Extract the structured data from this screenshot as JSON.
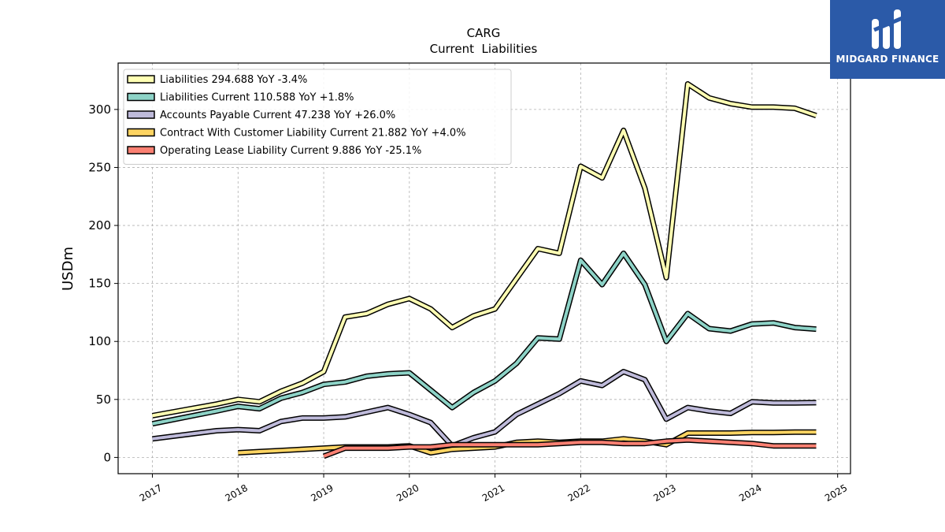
{
  "chart_data": {
    "type": "line",
    "title": "CARG",
    "subtitle": "Current  Liabilities",
    "ylabel": "USDm",
    "ylim": [
      -14,
      340
    ],
    "xlim": [
      2016.6,
      2025.15
    ],
    "yticks": [
      0,
      50,
      100,
      150,
      200,
      250,
      300
    ],
    "xticks": [
      "2017",
      "2018",
      "2019",
      "2020",
      "2021",
      "2022",
      "2023",
      "2024",
      "2025"
    ],
    "grid": true,
    "legend_position": "top-left",
    "series": [
      {
        "name": "Liabilities",
        "legend": "Liabilities  294.688 YoY -3.4%",
        "color": "#ffffb3",
        "x": [
          2017.0,
          2017.75,
          2018.0,
          2018.25,
          2018.5,
          2018.75,
          2019.0,
          2019.25,
          2019.5,
          2019.75,
          2020.0,
          2020.25,
          2020.5,
          2020.75,
          2021.0,
          2021.25,
          2021.5,
          2021.75,
          2022.0,
          2022.25,
          2022.5,
          2022.75,
          2023.0,
          2023.25,
          2023.5,
          2023.75,
          2024.0,
          2024.25,
          2024.5,
          2024.75
        ],
        "y": [
          36,
          46,
          50,
          48,
          57,
          64,
          74,
          121,
          124,
          132,
          137,
          128,
          112,
          122,
          128,
          154,
          180,
          176,
          251,
          241,
          282,
          232,
          155,
          322,
          310,
          305,
          302,
          302,
          301,
          294.688
        ]
      },
      {
        "name": "Liabilities Current",
        "legend": "Liabilities Current  110.588 YoY +1.8%",
        "color": "#8dd3c7",
        "x": [
          2017.0,
          2017.75,
          2018.0,
          2018.25,
          2018.5,
          2018.75,
          2019.0,
          2019.25,
          2019.5,
          2019.75,
          2020.0,
          2020.25,
          2020.5,
          2020.75,
          2021.0,
          2021.25,
          2021.5,
          2021.75,
          2022.0,
          2022.25,
          2022.5,
          2022.75,
          2023.0,
          2023.25,
          2023.5,
          2023.75,
          2024.0,
          2024.25,
          2024.5,
          2024.75
        ],
        "y": [
          29,
          40,
          44,
          42,
          51,
          56,
          63,
          65,
          70,
          72,
          73,
          58,
          43,
          56,
          66,
          81,
          103,
          102,
          170,
          149,
          176,
          149,
          100,
          124,
          111,
          109,
          115,
          116,
          112,
          110.588
        ]
      },
      {
        "name": "Accounts Payable Current",
        "legend": "Accounts Payable Current  47.238 YoY +26.0%",
        "color": "#bebada",
        "x": [
          2017.0,
          2017.75,
          2018.0,
          2018.25,
          2018.5,
          2018.75,
          2019.0,
          2019.25,
          2019.5,
          2019.75,
          2020.0,
          2020.25,
          2020.5,
          2020.75,
          2021.0,
          2021.25,
          2021.5,
          2021.75,
          2022.0,
          2022.25,
          2022.5,
          2022.75,
          2023.0,
          2023.25,
          2023.5,
          2023.75,
          2024.0,
          2024.25,
          2024.5,
          2024.75
        ],
        "y": [
          16,
          23,
          24,
          23,
          31,
          34,
          34,
          35,
          39,
          43,
          37,
          30,
          10,
          17,
          22,
          37,
          46,
          55,
          66,
          62,
          74,
          67,
          33,
          43,
          40,
          38,
          48,
          47,
          47,
          47.238
        ]
      },
      {
        "name": "Contract With Customer Liability Current",
        "legend": "Contract With Customer Liability Current  21.882 YoY +4.0%",
        "color": "#fdd462",
        "x": [
          2018.0,
          2018.25,
          2018.5,
          2018.75,
          2019.0,
          2019.25,
          2019.5,
          2019.75,
          2020.0,
          2020.25,
          2020.5,
          2020.75,
          2021.0,
          2021.25,
          2021.5,
          2021.75,
          2022.0,
          2022.25,
          2022.5,
          2022.75,
          2023.0,
          2023.25,
          2023.5,
          2023.75,
          2024.0,
          2024.25,
          2024.5,
          2024.75
        ],
        "y": [
          4,
          5,
          6,
          7,
          8,
          9,
          9,
          9,
          10,
          4,
          7,
          8,
          9,
          13,
          14,
          13,
          14,
          14,
          16,
          14,
          11,
          21,
          21,
          21,
          21.5,
          21.5,
          21.8,
          21.882
        ]
      },
      {
        "name": "Operating Lease Liability Current",
        "legend": "Operating Lease Liability Current  9.886 YoY -25.1%",
        "color": "#fb8072",
        "x": [
          2019.0,
          2019.25,
          2019.5,
          2019.75,
          2020.0,
          2020.25,
          2020.5,
          2020.75,
          2021.0,
          2021.25,
          2021.5,
          2021.75,
          2022.0,
          2022.25,
          2022.5,
          2022.75,
          2023.0,
          2023.25,
          2023.5,
          2023.75,
          2024.0,
          2024.25,
          2024.5,
          2024.75
        ],
        "y": [
          1,
          8,
          8,
          8,
          9,
          9,
          11,
          11,
          11,
          11,
          11,
          12,
          13,
          13,
          12,
          12,
          14,
          15,
          14,
          13,
          12,
          10,
          10,
          9.886
        ]
      }
    ]
  },
  "logo": {
    "text": "MIDGARD FINANCE",
    "background": "#2b5aa8"
  }
}
